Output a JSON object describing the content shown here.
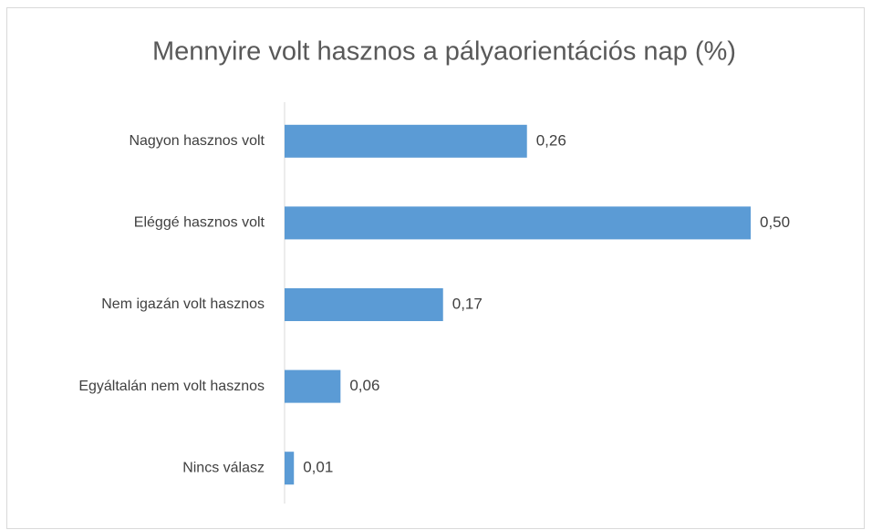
{
  "chart_data": {
    "type": "bar",
    "orientation": "horizontal",
    "title": "Mennyire volt hasznos a pályaorientációs nap (%)",
    "categories": [
      "Nagyon hasznos volt",
      "Eléggé hasznos volt",
      "Nem igazán volt hasznos",
      "Egyáltalán nem volt hasznos",
      "Nincs válasz"
    ],
    "values": [
      0.26,
      0.5,
      0.17,
      0.06,
      0.01
    ],
    "value_labels": [
      "0,26",
      "0,50",
      "0,17",
      "0,06",
      "0,01"
    ],
    "color": "#5b9bd5"
  }
}
